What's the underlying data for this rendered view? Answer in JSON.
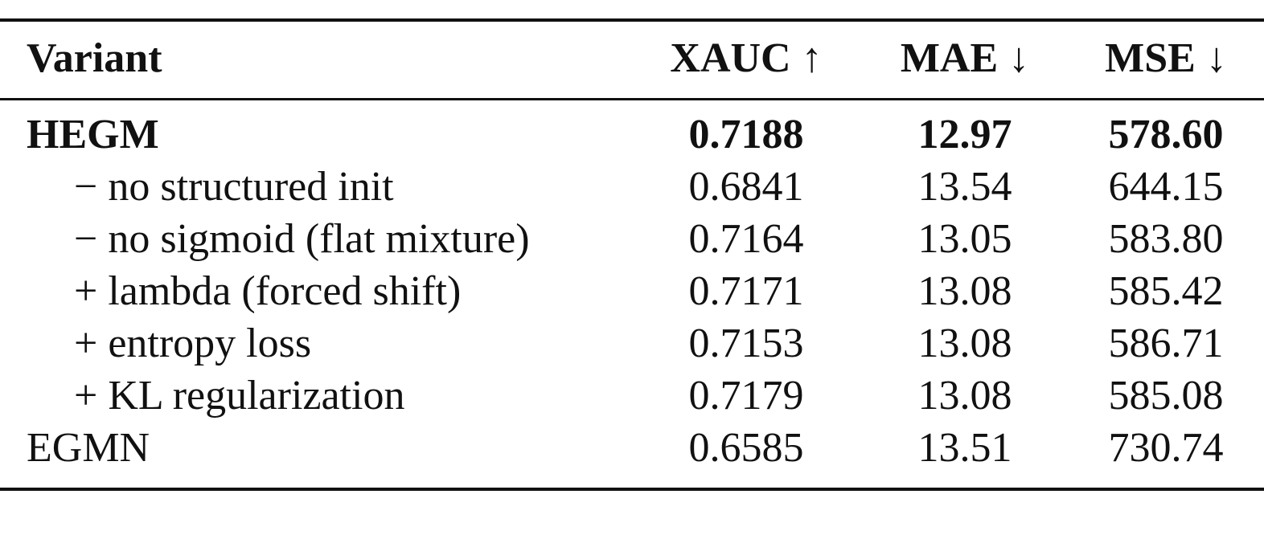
{
  "table": {
    "header": [
      "Variant",
      "XAUC ↑",
      "MAE ↓",
      "MSE ↓"
    ],
    "rows": [
      [
        "HEGM",
        "0.7188",
        "12.97",
        "578.60"
      ],
      [
        "− no structured init",
        "0.6841",
        "13.54",
        "644.15"
      ],
      [
        "− no sigmoid (flat mixture)",
        "0.7164",
        "13.05",
        "583.80"
      ],
      [
        "+ lambda (forced shift)",
        "0.7171",
        "13.08",
        "585.42"
      ],
      [
        "+ entropy loss",
        "0.7153",
        "13.08",
        "586.71"
      ],
      [
        "+ KL regularization",
        "0.7179",
        "13.08",
        "585.08"
      ],
      [
        "EGMN",
        "0.6585",
        "13.51",
        "730.74"
      ]
    ]
  }
}
